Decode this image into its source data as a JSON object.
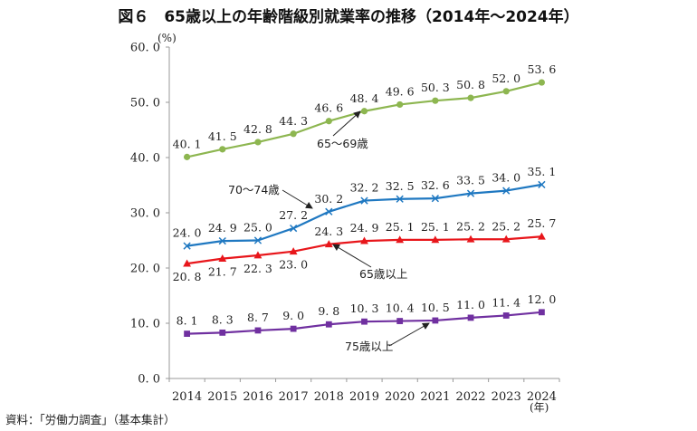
{
  "chart_data": {
    "type": "line",
    "title": "図６　65歳以上の年齢階級別就業率の推移（2014年～2024年）",
    "ylabel": "(%)",
    "xlabel": "(年)",
    "ylim": [
      0,
      60
    ],
    "yticks": [
      "0.0",
      "10.0",
      "20.0",
      "30.0",
      "40.0",
      "50.0",
      "60.0"
    ],
    "yticks_display": [
      "0. 0",
      "10. 0",
      "20. 0",
      "30. 0",
      "40. 0",
      "50. 0",
      "60. 0"
    ],
    "categories": [
      "2014",
      "2015",
      "2016",
      "2017",
      "2018",
      "2019",
      "2020",
      "2021",
      "2022",
      "2023",
      "2024"
    ],
    "grid": false,
    "series": [
      {
        "name": "65～69歳",
        "color": "#8db650",
        "marker": "circle",
        "values": [
          40.1,
          41.5,
          42.8,
          44.3,
          46.6,
          48.4,
          49.6,
          50.3,
          50.8,
          52.0,
          53.6
        ],
        "labels": [
          "40. 1",
          "41. 5",
          "42. 8",
          "44. 3",
          "46. 6",
          "48. 4",
          "49. 6",
          "50. 3",
          "50. 8",
          "52. 0",
          "53. 6"
        ]
      },
      {
        "name": "70～74歳",
        "color": "#1f78c1",
        "marker": "x",
        "values": [
          24.0,
          24.9,
          25.0,
          27.2,
          30.2,
          32.2,
          32.5,
          32.6,
          33.5,
          34.0,
          35.1
        ],
        "labels": [
          "24. 0",
          "24. 9",
          "25. 0",
          "27. 2",
          "30. 2",
          "32. 2",
          "32. 5",
          "32. 6",
          "33. 5",
          "34. 0",
          "35. 1"
        ]
      },
      {
        "name": "65歳以上",
        "color": "#e8161b",
        "marker": "triangle",
        "values": [
          20.8,
          21.7,
          22.3,
          23.0,
          24.3,
          24.9,
          25.1,
          25.1,
          25.2,
          25.2,
          25.7
        ],
        "labels": [
          "20. 8",
          "21. 7",
          "22. 3",
          "23. 0",
          "24. 3",
          "24. 9",
          "25. 1",
          "25. 1",
          "25. 2",
          "25. 2",
          "25. 7"
        ]
      },
      {
        "name": "75歳以上",
        "color": "#7030a0",
        "marker": "square",
        "values": [
          8.1,
          8.3,
          8.7,
          9.0,
          9.8,
          10.3,
          10.4,
          10.5,
          11.0,
          11.4,
          12.0
        ],
        "labels": [
          "8. 1",
          "8. 3",
          "8. 7",
          "9. 0",
          "9. 8",
          "10. 3",
          "10. 4",
          "10. 5",
          "11. 0",
          "11. 4",
          "12. 0"
        ]
      }
    ],
    "source": "資料：「労働力調査」（基本集計）"
  }
}
